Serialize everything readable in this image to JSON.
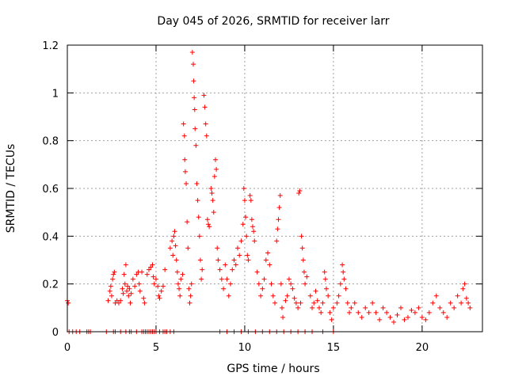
{
  "chart_data": {
    "type": "scatter",
    "title": "Day 045 of 2026, SRMTID for receiver larr",
    "xlabel": "GPS time / hours",
    "ylabel": "SRMTID / TECUs",
    "xlim": [
      0,
      23.4
    ],
    "ylim": [
      0,
      1.2
    ],
    "xticks": [
      0,
      5,
      10,
      15,
      20
    ],
    "yticks": [
      0,
      0.2,
      0.4,
      0.6,
      0.8,
      1,
      1.2
    ],
    "xtick_labels": [
      "0",
      "5",
      "10",
      "15",
      "20"
    ],
    "ytick_labels": [
      "0",
      "0.2",
      "0.4",
      "0.6",
      "0.8",
      "1",
      "1.2"
    ],
    "grid": true,
    "marker": "+",
    "series": [
      {
        "name": "SRMTID",
        "color": "#ff0000",
        "points": [
          [
            0.0,
            0.13
          ],
          [
            0.05,
            0.12
          ],
          [
            0.1,
            0.0
          ],
          [
            0.3,
            0.0
          ],
          [
            0.5,
            0.0
          ],
          [
            0.7,
            0.0
          ],
          [
            1.1,
            0.0
          ],
          [
            1.2,
            0.0
          ],
          [
            1.3,
            0.0
          ],
          [
            2.2,
            0.0
          ],
          [
            2.3,
            0.13
          ],
          [
            2.4,
            0.17
          ],
          [
            2.45,
            0.19
          ],
          [
            2.5,
            0.15
          ],
          [
            2.55,
            0.22
          ],
          [
            2.6,
            0.24
          ],
          [
            2.65,
            0.25
          ],
          [
            2.7,
            0.12
          ],
          [
            2.8,
            0.13
          ],
          [
            2.9,
            0.12
          ],
          [
            3.0,
            0.13
          ],
          [
            3.1,
            0.18
          ],
          [
            3.15,
            0.16
          ],
          [
            3.2,
            0.24
          ],
          [
            3.25,
            0.2
          ],
          [
            3.3,
            0.28
          ],
          [
            3.35,
            0.17
          ],
          [
            3.4,
            0.19
          ],
          [
            3.45,
            0.15
          ],
          [
            3.5,
            0.18
          ],
          [
            3.55,
            0.12
          ],
          [
            3.6,
            0.16
          ],
          [
            3.7,
            0.22
          ],
          [
            3.8,
            0.19
          ],
          [
            3.9,
            0.24
          ],
          [
            4.0,
            0.25
          ],
          [
            4.05,
            0.2
          ],
          [
            4.1,
            0.17
          ],
          [
            4.2,
            0.25
          ],
          [
            4.3,
            0.14
          ],
          [
            4.35,
            0.12
          ],
          [
            2.6,
            0.0
          ],
          [
            2.7,
            0.0
          ],
          [
            3.0,
            0.0
          ],
          [
            3.3,
            0.0
          ],
          [
            3.5,
            0.0
          ],
          [
            3.6,
            0.0
          ],
          [
            3.9,
            0.0
          ],
          [
            4.2,
            0.0
          ],
          [
            4.3,
            0.0
          ],
          [
            4.4,
            0.0
          ],
          [
            4.5,
            0.0
          ],
          [
            4.6,
            0.0
          ],
          [
            4.7,
            0.0
          ],
          [
            4.8,
            0.0
          ],
          [
            4.9,
            0.0
          ],
          [
            5.0,
            0.0
          ],
          [
            5.2,
            0.0
          ],
          [
            5.4,
            0.0
          ],
          [
            5.5,
            0.0
          ],
          [
            5.6,
            0.0
          ],
          [
            5.8,
            0.0
          ],
          [
            6.0,
            0.0
          ],
          [
            4.5,
            0.24
          ],
          [
            4.6,
            0.26
          ],
          [
            4.7,
            0.27
          ],
          [
            4.8,
            0.28
          ],
          [
            4.85,
            0.23
          ],
          [
            4.9,
            0.2
          ],
          [
            5.0,
            0.22
          ],
          [
            5.1,
            0.19
          ],
          [
            5.15,
            0.15
          ],
          [
            5.2,
            0.14
          ],
          [
            5.3,
            0.17
          ],
          [
            5.4,
            0.19
          ],
          [
            5.5,
            0.26
          ],
          [
            5.8,
            0.35
          ],
          [
            5.9,
            0.38
          ],
          [
            5.95,
            0.32
          ],
          [
            6.0,
            0.4
          ],
          [
            6.05,
            0.42
          ],
          [
            6.1,
            0.36
          ],
          [
            6.15,
            0.3
          ],
          [
            6.2,
            0.25
          ],
          [
            6.25,
            0.2
          ],
          [
            6.3,
            0.18
          ],
          [
            6.35,
            0.15
          ],
          [
            6.4,
            0.22
          ],
          [
            6.5,
            0.24
          ],
          [
            6.55,
            0.87
          ],
          [
            6.6,
            0.82
          ],
          [
            6.62,
            0.72
          ],
          [
            6.65,
            0.67
          ],
          [
            6.7,
            0.62
          ],
          [
            6.75,
            0.46
          ],
          [
            6.8,
            0.35
          ],
          [
            6.85,
            0.18
          ],
          [
            6.9,
            0.12
          ],
          [
            6.95,
            0.15
          ],
          [
            7.0,
            0.2
          ],
          [
            7.05,
            1.17
          ],
          [
            7.1,
            1.12
          ],
          [
            7.12,
            1.05
          ],
          [
            7.15,
            0.98
          ],
          [
            7.18,
            0.93
          ],
          [
            7.2,
            0.85
          ],
          [
            7.25,
            0.78
          ],
          [
            7.3,
            0.62
          ],
          [
            7.35,
            0.55
          ],
          [
            7.4,
            0.48
          ],
          [
            7.45,
            0.4
          ],
          [
            7.5,
            0.3
          ],
          [
            7.55,
            0.22
          ],
          [
            7.6,
            0.26
          ],
          [
            7.7,
            0.99
          ],
          [
            7.75,
            0.94
          ],
          [
            7.8,
            0.87
          ],
          [
            7.85,
            0.82
          ],
          [
            7.9,
            0.47
          ],
          [
            7.95,
            0.45
          ],
          [
            8.0,
            0.44
          ],
          [
            8.1,
            0.6
          ],
          [
            8.15,
            0.58
          ],
          [
            8.2,
            0.55
          ],
          [
            8.25,
            0.5
          ],
          [
            8.3,
            0.65
          ],
          [
            8.35,
            0.72
          ],
          [
            8.4,
            0.68
          ],
          [
            8.45,
            0.35
          ],
          [
            8.5,
            0.3
          ],
          [
            8.6,
            0.26
          ],
          [
            8.7,
            0.22
          ],
          [
            8.8,
            0.18
          ],
          [
            8.9,
            0.28
          ],
          [
            9.0,
            0.22
          ],
          [
            9.1,
            0.15
          ],
          [
            9.2,
            0.2
          ],
          [
            9.3,
            0.26
          ],
          [
            9.4,
            0.3
          ],
          [
            9.5,
            0.28
          ],
          [
            9.6,
            0.35
          ],
          [
            9.7,
            0.32
          ],
          [
            9.8,
            0.38
          ],
          [
            9.9,
            0.45
          ],
          [
            9.95,
            0.6
          ],
          [
            10.0,
            0.55
          ],
          [
            10.05,
            0.48
          ],
          [
            10.1,
            0.4
          ],
          [
            10.15,
            0.32
          ],
          [
            10.2,
            0.3
          ],
          [
            10.3,
            0.57
          ],
          [
            10.35,
            0.55
          ],
          [
            10.4,
            0.47
          ],
          [
            10.45,
            0.44
          ],
          [
            10.5,
            0.42
          ],
          [
            10.55,
            0.38
          ],
          [
            10.7,
            0.25
          ],
          [
            10.8,
            0.2
          ],
          [
            10.9,
            0.15
          ],
          [
            11.0,
            0.18
          ],
          [
            11.1,
            0.22
          ],
          [
            11.2,
            0.3
          ],
          [
            11.3,
            0.33
          ],
          [
            11.4,
            0.28
          ],
          [
            11.5,
            0.2
          ],
          [
            11.6,
            0.15
          ],
          [
            11.7,
            0.12
          ],
          [
            11.8,
            0.38
          ],
          [
            11.85,
            0.43
          ],
          [
            11.9,
            0.47
          ],
          [
            11.95,
            0.52
          ],
          [
            12.0,
            0.57
          ],
          [
            12.05,
            0.2
          ],
          [
            12.1,
            0.1
          ],
          [
            12.15,
            0.06
          ],
          [
            12.3,
            0.13
          ],
          [
            12.4,
            0.15
          ],
          [
            12.5,
            0.22
          ],
          [
            12.6,
            0.2
          ],
          [
            12.7,
            0.18
          ],
          [
            12.8,
            0.14
          ],
          [
            12.9,
            0.12
          ],
          [
            13.0,
            0.1
          ],
          [
            13.05,
            0.58
          ],
          [
            13.1,
            0.59
          ],
          [
            13.15,
            0.12
          ],
          [
            13.2,
            0.4
          ],
          [
            13.25,
            0.35
          ],
          [
            13.3,
            0.3
          ],
          [
            13.35,
            0.25
          ],
          [
            13.4,
            0.2
          ],
          [
            13.5,
            0.23
          ],
          [
            13.7,
            0.15
          ],
          [
            13.8,
            0.1
          ],
          [
            13.9,
            0.12
          ],
          [
            14.0,
            0.17
          ],
          [
            14.1,
            0.13
          ],
          [
            14.2,
            0.1
          ],
          [
            14.3,
            0.08
          ],
          [
            14.4,
            0.12
          ],
          [
            14.5,
            0.25
          ],
          [
            14.55,
            0.22
          ],
          [
            14.6,
            0.18
          ],
          [
            14.7,
            0.15
          ],
          [
            14.8,
            0.08
          ],
          [
            14.9,
            0.05
          ],
          [
            15.0,
            0.1
          ],
          [
            15.2,
            0.12
          ],
          [
            15.3,
            0.15
          ],
          [
            15.4,
            0.2
          ],
          [
            15.5,
            0.28
          ],
          [
            15.55,
            0.25
          ],
          [
            15.6,
            0.22
          ],
          [
            15.7,
            0.18
          ],
          [
            15.8,
            0.12
          ],
          [
            15.9,
            0.08
          ],
          [
            16.0,
            0.1
          ],
          [
            16.2,
            0.12
          ],
          [
            16.4,
            0.08
          ],
          [
            16.6,
            0.06
          ],
          [
            16.8,
            0.1
          ],
          [
            17.0,
            0.08
          ],
          [
            17.2,
            0.12
          ],
          [
            17.4,
            0.08
          ],
          [
            17.6,
            0.05
          ],
          [
            17.8,
            0.1
          ],
          [
            18.0,
            0.08
          ],
          [
            18.2,
            0.06
          ],
          [
            18.4,
            0.04
          ],
          [
            18.6,
            0.07
          ],
          [
            18.8,
            0.1
          ],
          [
            19.0,
            0.05
          ],
          [
            19.2,
            0.06
          ],
          [
            19.4,
            0.09
          ],
          [
            19.6,
            0.08
          ],
          [
            19.8,
            0.1
          ],
          [
            20.0,
            0.06
          ],
          [
            20.2,
            0.05
          ],
          [
            20.4,
            0.08
          ],
          [
            20.6,
            0.12
          ],
          [
            20.8,
            0.15
          ],
          [
            21.0,
            0.1
          ],
          [
            21.2,
            0.08
          ],
          [
            21.4,
            0.06
          ],
          [
            21.6,
            0.12
          ],
          [
            21.8,
            0.1
          ],
          [
            22.0,
            0.15
          ],
          [
            22.2,
            0.12
          ],
          [
            22.3,
            0.18
          ],
          [
            22.4,
            0.2
          ],
          [
            22.5,
            0.14
          ],
          [
            22.6,
            0.12
          ],
          [
            22.7,
            0.1
          ],
          [
            8.6,
            0.0
          ],
          [
            9.0,
            0.0
          ],
          [
            9.4,
            0.0
          ],
          [
            9.8,
            0.0
          ],
          [
            10.2,
            0.0
          ],
          [
            10.6,
            0.0
          ],
          [
            11.0,
            0.0
          ],
          [
            11.4,
            0.0
          ],
          [
            11.8,
            0.0
          ],
          [
            12.2,
            0.0
          ],
          [
            12.6,
            0.0
          ],
          [
            13.0,
            0.0
          ],
          [
            13.4,
            0.0
          ],
          [
            13.8,
            0.0
          ],
          [
            14.4,
            0.0
          ],
          [
            15.0,
            0.0
          ]
        ]
      }
    ]
  }
}
